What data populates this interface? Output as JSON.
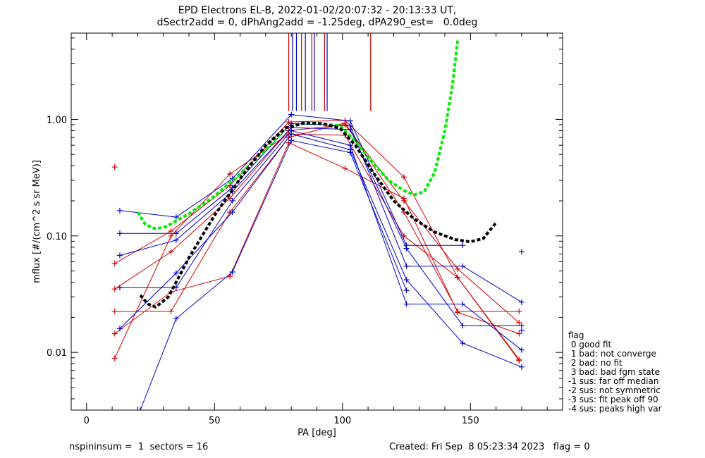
{
  "header": {
    "title_line1": "EPD Electrons EL-B, 2022-01-02/20:07:32 - 20:13:33 UT,",
    "title_line2": "dSectr2add = 0, dPhAng2add = -1.25deg, dPA290_est=   0.0deg"
  },
  "footer": {
    "left": "nspininsum =  1  sectors = 16",
    "right": "Created: Fri Sep  8 05:23:34 2023   flag = 0"
  },
  "legend": {
    "title": "flag",
    "items": [
      " 0 good fit",
      " 1 bad: not converge",
      " 2 bad: no fit",
      " 3 bad: bad fgm state",
      "-1 sus: far off median",
      "-2 sus: not symmetric",
      "-3 sus: fit peak off 90",
      "-4 sus: peaks high var"
    ]
  },
  "colors": {
    "red": "#d40000",
    "blue": "#0000cc",
    "green": "#00ee00",
    "black": "#000000",
    "axes": "#000000"
  },
  "chart_data": {
    "type": "line",
    "xlabel": "PA [deg]",
    "ylabel": "mflux [#/(cm^2 s sr MeV)]",
    "xlim": [
      -6,
      186
    ],
    "ylim": [
      0.0032,
      5.5
    ],
    "yscale": "log",
    "x_ticks": [
      0,
      50,
      100,
      150
    ],
    "x_tick_labels": [
      "0",
      "50",
      "100",
      "150"
    ],
    "y_ticks": [
      0.01,
      0.1,
      1.0
    ],
    "y_tick_labels": [
      "0.01",
      "0.10",
      "1.00"
    ],
    "vlines": [
      {
        "x": 79,
        "color": "red"
      },
      {
        "x": 80.5,
        "color": "blue"
      },
      {
        "x": 82,
        "color": "blue"
      },
      {
        "x": 84,
        "color": "red"
      },
      {
        "x": 85.5,
        "color": "blue"
      },
      {
        "x": 88,
        "color": "red"
      },
      {
        "x": 89,
        "color": "blue"
      },
      {
        "x": 93,
        "color": "red"
      },
      {
        "x": 94,
        "color": "blue"
      },
      {
        "x": 111,
        "color": "red"
      }
    ],
    "series": [
      {
        "color": "red",
        "points": [
          [
            11,
            0.39
          ]
        ]
      },
      {
        "color": "red",
        "points": [
          [
            11,
            0.058
          ],
          [
            33,
            0.11
          ],
          [
            56,
            0.27
          ],
          [
            79,
            0.95
          ],
          [
            101,
            0.98
          ],
          [
            124,
            0.32
          ],
          [
            145,
            0.044
          ],
          [
            169,
            0.0087
          ]
        ]
      },
      {
        "color": "red",
        "points": [
          [
            11,
            0.035
          ],
          [
            33,
            0.073
          ],
          [
            56,
            0.21
          ],
          [
            79,
            0.8
          ],
          [
            101,
            0.9
          ],
          [
            124,
            0.2
          ],
          [
            145,
            0.052
          ],
          [
            169,
            0.018
          ]
        ]
      },
      {
        "color": "red",
        "points": [
          [
            11,
            0.0225
          ],
          [
            33,
            0.0225
          ],
          [
            56,
            0.16
          ],
          [
            79,
            0.7
          ],
          [
            101,
            0.93
          ],
          [
            124,
            0.16
          ],
          [
            145,
            0.0225
          ],
          [
            169,
            0.0225
          ]
        ]
      },
      {
        "color": "red",
        "points": [
          [
            11,
            0.0145
          ],
          [
            33,
            0.033
          ],
          [
            56,
            0.045
          ],
          [
            79,
            0.63
          ],
          [
            101,
            0.38
          ],
          [
            124,
            0.21
          ],
          [
            145,
            0.022
          ],
          [
            169,
            0.0145
          ]
        ]
      },
      {
        "color": "red",
        "points": [
          [
            11,
            0.0089
          ],
          [
            33,
            0.1
          ],
          [
            56,
            0.34
          ],
          [
            79,
            0.75
          ],
          [
            101,
            0.73
          ],
          [
            124,
            0.1
          ],
          [
            145,
            0.044
          ],
          [
            169,
            0.0085
          ]
        ]
      },
      {
        "color": "blue",
        "points": [
          [
            13,
            0.165
          ],
          [
            35,
            0.145
          ],
          [
            57,
            0.31
          ],
          [
            80,
            1.1
          ],
          [
            103,
            0.97
          ],
          [
            125,
            0.083
          ],
          [
            147,
            0.083
          ]
        ]
      },
      {
        "color": "blue",
        "points": [
          [
            13,
            0.105
          ],
          [
            35,
            0.105
          ],
          [
            57,
            0.26
          ],
          [
            80,
            0.92
          ],
          [
            103,
            0.88
          ],
          [
            125,
            0.055
          ],
          [
            147,
            0.055
          ],
          [
            170,
            0.027
          ]
        ]
      },
      {
        "color": "blue",
        "points": [
          [
            13,
            0.068
          ],
          [
            35,
            0.092
          ],
          [
            57,
            0.24
          ],
          [
            80,
            0.85
          ],
          [
            103,
            0.82
          ],
          [
            125,
            0.078
          ],
          [
            147,
            0.017
          ],
          [
            170,
            0.017
          ]
        ]
      },
      {
        "color": "blue",
        "points": [
          [
            13,
            0.036
          ],
          [
            35,
            0.036
          ],
          [
            57,
            0.2
          ],
          [
            80,
            0.8
          ],
          [
            103,
            0.6
          ],
          [
            125,
            0.026
          ],
          [
            147,
            0.026
          ],
          [
            170,
            0.0105
          ]
        ]
      },
      {
        "color": "blue",
        "points": [
          [
            13,
            0.016
          ],
          [
            35,
            0.048
          ],
          [
            57,
            0.16
          ],
          [
            80,
            0.75
          ],
          [
            103,
            0.55
          ],
          [
            125,
            0.042
          ],
          [
            147,
            0.012
          ],
          [
            170,
            0.0075
          ]
        ]
      },
      {
        "color": "blue",
        "points": [
          [
            21,
            0.0032
          ],
          [
            35,
            0.0195
          ],
          [
            57,
            0.049
          ],
          [
            80,
            0.66
          ],
          [
            103,
            0.52
          ],
          [
            125,
            0.034
          ]
        ]
      },
      {
        "color": "blue",
        "points": [
          [
            170,
            0.073
          ]
        ]
      },
      {
        "color": "blue",
        "points": [
          [
            170,
            0.0155
          ]
        ]
      },
      {
        "color": "green",
        "dashed": true,
        "points": [
          [
            20,
            0.16
          ],
          [
            23,
            0.125
          ],
          [
            27,
            0.115
          ],
          [
            31,
            0.12
          ],
          [
            40,
            0.155
          ],
          [
            50,
            0.22
          ],
          [
            60,
            0.34
          ],
          [
            70,
            0.55
          ],
          [
            78,
            0.85
          ],
          [
            85,
            0.93
          ],
          [
            92,
            0.92
          ],
          [
            99,
            0.88
          ],
          [
            105,
            0.65
          ],
          [
            112,
            0.42
          ],
          [
            118,
            0.3
          ],
          [
            124,
            0.245
          ],
          [
            128,
            0.225
          ],
          [
            132,
            0.24
          ],
          [
            136,
            0.35
          ],
          [
            140,
            0.8
          ],
          [
            143,
            2.0
          ],
          [
            145,
            4.8
          ]
        ]
      },
      {
        "color": "black",
        "dashed": true,
        "points": [
          [
            21,
            0.031
          ],
          [
            24,
            0.026
          ],
          [
            27,
            0.0245
          ],
          [
            32,
            0.03
          ],
          [
            40,
            0.065
          ],
          [
            50,
            0.15
          ],
          [
            60,
            0.31
          ],
          [
            70,
            0.6
          ],
          [
            78,
            0.85
          ],
          [
            85,
            0.93
          ],
          [
            92,
            0.92
          ],
          [
            99,
            0.84
          ],
          [
            105,
            0.6
          ],
          [
            112,
            0.35
          ],
          [
            120,
            0.2
          ],
          [
            128,
            0.14
          ],
          [
            136,
            0.108
          ],
          [
            144,
            0.093
          ],
          [
            150,
            0.089
          ],
          [
            155,
            0.095
          ],
          [
            160,
            0.13
          ]
        ]
      }
    ]
  }
}
